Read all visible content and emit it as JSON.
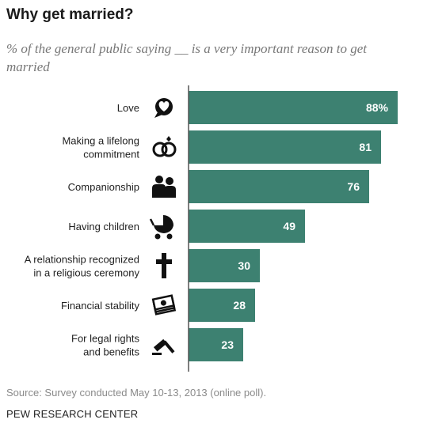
{
  "title": "Why get married?",
  "subtitle": "% of the general public saying __ is a very important reason to get married",
  "source": "Source: Survey conducted May 10-13, 2013 (online poll).",
  "org": "PEW RESEARCH CENTER",
  "colors": {
    "bar": "#3d8171",
    "axis": "#555555",
    "label_text": "#ffffff"
  },
  "chart_data": {
    "type": "bar",
    "orientation": "horizontal",
    "categories": [
      "Love",
      "Making a lifelong commitment",
      "Companionship",
      "Having children",
      "A relationship recognized in a religious ceremony",
      "Financial stability",
      "For legal rights and benefits"
    ],
    "category_lines": [
      [
        "Love"
      ],
      [
        "Making a lifelong",
        "commitment"
      ],
      [
        "Companionship"
      ],
      [
        "Having children"
      ],
      [
        "A relationship recognized",
        "in a religious ceremony"
      ],
      [
        "Financial stability"
      ],
      [
        "For legal rights",
        "and benefits"
      ]
    ],
    "values": [
      88,
      81,
      76,
      49,
      30,
      28,
      23
    ],
    "value_labels": [
      "88%",
      "81",
      "76",
      "49",
      "30",
      "28",
      "23"
    ],
    "icons": [
      "heart-speech-icon",
      "wedding-rings-icon",
      "couple-icon",
      "baby-stroller-icon",
      "cross-icon",
      "money-stack-icon",
      "gavel-icon"
    ],
    "xlim": [
      0,
      100
    ]
  }
}
